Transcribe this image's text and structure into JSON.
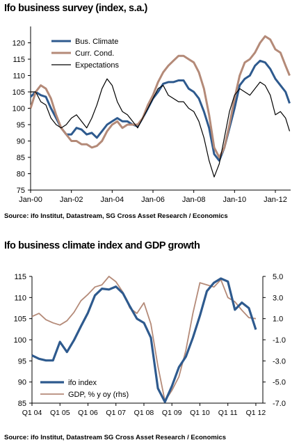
{
  "chart_data": [
    {
      "type": "line",
      "title": "Ifo business survey (index, s.a.)",
      "source": "Source: ifo Institut, Datastream, SG Cross Asset Research / Economics",
      "x_range": [
        2000.0,
        2012.75
      ],
      "x_ticks": [
        2000,
        2002,
        2004,
        2006,
        2008,
        2010,
        2012
      ],
      "x_tick_labels": [
        "Jan-00",
        "Jan-02",
        "Jan-04",
        "Jan-06",
        "Jan-08",
        "Jan-10",
        "Jan-12"
      ],
      "ylim": [
        75,
        125
      ],
      "y_ticks": [
        75,
        80,
        85,
        90,
        95,
        100,
        105,
        110,
        115,
        120
      ],
      "legend_position": "top-left",
      "series": [
        {
          "name": "Bus. Climate",
          "color": "#2e5a8e",
          "x": [
            2000.0,
            2000.25,
            2000.5,
            2000.75,
            2001.0,
            2001.25,
            2001.5,
            2001.75,
            2002.0,
            2002.25,
            2002.5,
            2002.75,
            2003.0,
            2003.25,
            2003.5,
            2003.75,
            2004.0,
            2004.25,
            2004.5,
            2004.75,
            2005.0,
            2005.25,
            2005.5,
            2005.75,
            2006.0,
            2006.25,
            2006.5,
            2006.75,
            2007.0,
            2007.25,
            2007.5,
            2007.75,
            2008.0,
            2008.25,
            2008.5,
            2008.75,
            2009.0,
            2009.25,
            2009.5,
            2009.75,
            2010.0,
            2010.25,
            2010.5,
            2010.75,
            2011.0,
            2011.25,
            2011.5,
            2011.75,
            2012.0,
            2012.25,
            2012.5,
            2012.7
          ],
          "y": [
            103.5,
            105,
            104,
            103.5,
            100,
            97,
            94,
            92,
            92,
            94,
            93.5,
            92,
            92.5,
            91,
            93,
            95,
            96,
            97,
            96,
            96,
            95,
            94.5,
            97,
            100,
            103,
            105,
            107.5,
            108,
            108,
            108.5,
            108.5,
            106,
            105,
            103,
            99,
            94,
            86,
            84,
            88,
            94,
            100,
            107,
            109,
            110,
            113,
            114.5,
            114,
            112,
            109,
            107,
            105,
            101.5
          ]
        },
        {
          "name": "Curr. Cond.",
          "color": "#b48a78",
          "x": [
            2000.0,
            2000.25,
            2000.5,
            2000.75,
            2001.0,
            2001.25,
            2001.5,
            2001.75,
            2002.0,
            2002.25,
            2002.5,
            2002.75,
            2003.0,
            2003.25,
            2003.5,
            2003.75,
            2004.0,
            2004.25,
            2004.5,
            2004.75,
            2005.0,
            2005.25,
            2005.5,
            2005.75,
            2006.0,
            2006.25,
            2006.5,
            2006.75,
            2007.0,
            2007.25,
            2007.5,
            2007.75,
            2008.0,
            2008.25,
            2008.5,
            2008.75,
            2009.0,
            2009.25,
            2009.5,
            2009.75,
            2010.0,
            2010.25,
            2010.5,
            2010.75,
            2011.0,
            2011.25,
            2011.5,
            2011.75,
            2012.0,
            2012.25,
            2012.5,
            2012.7
          ],
          "y": [
            100,
            105,
            107,
            106,
            103,
            98,
            94,
            92,
            90,
            90,
            89,
            89,
            88,
            88.5,
            90,
            93,
            95,
            96,
            94,
            95,
            95,
            95,
            97,
            101,
            104,
            108,
            111,
            113,
            114.5,
            116,
            116,
            115,
            114,
            111,
            106,
            98,
            88,
            85,
            88,
            95,
            103,
            110,
            114,
            115,
            117,
            120,
            122,
            121,
            118,
            117,
            113,
            110
          ]
        },
        {
          "name": "Expectations",
          "color": "#000000",
          "x": [
            2000.0,
            2000.25,
            2000.5,
            2000.75,
            2001.0,
            2001.25,
            2001.5,
            2001.75,
            2002.0,
            2002.25,
            2002.5,
            2002.75,
            2003.0,
            2003.25,
            2003.5,
            2003.75,
            2004.0,
            2004.25,
            2004.5,
            2004.75,
            2005.0,
            2005.25,
            2005.5,
            2005.75,
            2006.0,
            2006.25,
            2006.5,
            2006.75,
            2007.0,
            2007.25,
            2007.5,
            2007.75,
            2008.0,
            2008.25,
            2008.5,
            2008.75,
            2009.0,
            2009.25,
            2009.5,
            2009.75,
            2010.0,
            2010.25,
            2010.5,
            2010.75,
            2011.0,
            2011.25,
            2011.5,
            2011.75,
            2012.0,
            2012.25,
            2012.5,
            2012.7
          ],
          "y": [
            105,
            105,
            102,
            101,
            97,
            95,
            94,
            95,
            97,
            98,
            96,
            94,
            97,
            101,
            106,
            109,
            107,
            102,
            99,
            98,
            96,
            94,
            97,
            100,
            103,
            106,
            107,
            104,
            103,
            102,
            102,
            100,
            99,
            96,
            91,
            84,
            79,
            83,
            91,
            99,
            104,
            106,
            105,
            104,
            106,
            108,
            107,
            104,
            98,
            99,
            97,
            93
          ]
        }
      ]
    },
    {
      "type": "line",
      "title": "Ifo business climate index and GDP growth",
      "source": "Source: ifo Institut, Datastream SG Cross Asset Research / Economics",
      "x_range": [
        0,
        33
      ],
      "x_ticks": [
        0,
        4,
        8,
        12,
        16,
        20,
        24,
        28,
        32
      ],
      "x_tick_labels": [
        "Q1 04",
        "Q1 05",
        "Q1 06",
        "Q1 07",
        "Q1 08",
        "Q1 09",
        "Q1 10",
        "Q1 11",
        "Q1 12"
      ],
      "y_left_lim": [
        85,
        115
      ],
      "y_left_ticks": [
        85,
        90,
        95,
        100,
        105,
        110,
        115
      ],
      "y_right_lim": [
        -7.0,
        5.0
      ],
      "y_right_ticks": [
        "5.0",
        "3.0",
        "1.0",
        "-1.0",
        "-3.0",
        "-5.0",
        "-7.0"
      ],
      "legend_position": "bottom-left",
      "series": [
        {
          "name": "ifo index",
          "axis": "left",
          "color": "#2e5a8e",
          "x": [
            0,
            1,
            2,
            3,
            4,
            5,
            6,
            7,
            8,
            9,
            10,
            11,
            12,
            13,
            14,
            15,
            16,
            17,
            18,
            19,
            20,
            21,
            22,
            23,
            24,
            25,
            26,
            27,
            28,
            29,
            30,
            31,
            32,
            33
          ],
          "y": [
            96.3,
            95.5,
            95.1,
            95.1,
            99.5,
            97.1,
            99.9,
            103.2,
            106.4,
            110.5,
            112.1,
            111.9,
            112.6,
            111.0,
            107.9,
            105.0,
            104.0,
            100.5,
            88.5,
            85.3,
            89.0,
            93.5,
            96.0,
            100.5,
            105.7,
            111.5,
            113.5,
            114.5,
            113.8,
            107.1,
            108.8,
            107.5,
            102.4,
            null
          ]
        },
        {
          "name": "GDP, % y oy (rhs)",
          "axis": "right",
          "color": "#b48a78",
          "x": [
            0,
            1,
            2,
            3,
            4,
            5,
            6,
            7,
            8,
            9,
            10,
            11,
            12,
            13,
            14,
            15,
            16,
            17,
            18,
            19,
            20,
            21,
            22,
            23,
            24,
            25,
            26,
            27,
            28,
            29,
            30,
            31,
            32
          ],
          "y": [
            1.2,
            1.5,
            0.9,
            0.6,
            0.4,
            0.8,
            1.6,
            2.7,
            3.3,
            4.0,
            4.2,
            5.0,
            4.5,
            3.5,
            2.0,
            1.5,
            2.5,
            0.5,
            -3.5,
            -6.8,
            -5.8,
            -4.5,
            -2.0,
            1.5,
            4.4,
            4.2,
            4.0,
            4.7,
            3.0,
            2.6,
            1.8,
            1.1,
            1.0
          ]
        }
      ]
    }
  ]
}
